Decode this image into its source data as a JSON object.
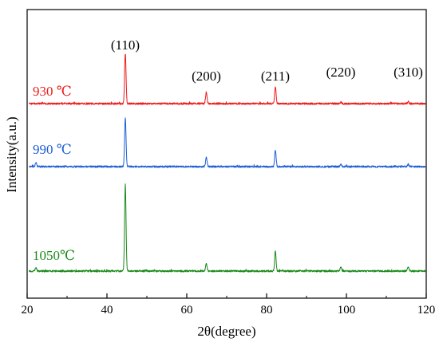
{
  "chart_data": {
    "type": "line",
    "xlabel": "2θ(degree)",
    "ylabel": "Intensity(a.u.)",
    "xlim": [
      20,
      120
    ],
    "xticks": [
      "20",
      "40",
      "60",
      "80",
      "100",
      "120"
    ],
    "y_tick_labels": "none",
    "grid": false,
    "legend": "none",
    "peak_labels": [
      {
        "text": "(110)",
        "x": 44.6
      },
      {
        "text": "(200)",
        "x": 64.9
      },
      {
        "text": "(211)",
        "x": 82.2
      },
      {
        "text": "(220)",
        "x": 98.6
      },
      {
        "text": "(310)",
        "x": 115.5
      }
    ],
    "series": [
      {
        "name": "930 ℃",
        "color": "#ee1c1c",
        "peaks": [
          {
            "x": 44.6,
            "rel_intensity": 1.0
          },
          {
            "x": 64.9,
            "rel_intensity": 0.23
          },
          {
            "x": 82.2,
            "rel_intensity": 0.34
          },
          {
            "x": 98.6,
            "rel_intensity": 0.03
          },
          {
            "x": 115.5,
            "rel_intensity": 0.04
          }
        ]
      },
      {
        "name": "990 ℃",
        "color": "#1e5fd6",
        "peaks": [
          {
            "x": 22.2,
            "rel_intensity": 0.08
          },
          {
            "x": 44.6,
            "rel_intensity": 1.0
          },
          {
            "x": 64.9,
            "rel_intensity": 0.18
          },
          {
            "x": 82.2,
            "rel_intensity": 0.34
          },
          {
            "x": 98.6,
            "rel_intensity": 0.05
          },
          {
            "x": 115.5,
            "rel_intensity": 0.05
          }
        ]
      },
      {
        "name": "1050℃",
        "color": "#1a8a1a",
        "peaks": [
          {
            "x": 22.2,
            "rel_intensity": 0.04
          },
          {
            "x": 44.6,
            "rel_intensity": 1.0
          },
          {
            "x": 64.9,
            "rel_intensity": 0.09
          },
          {
            "x": 82.2,
            "rel_intensity": 0.23
          },
          {
            "x": 98.6,
            "rel_intensity": 0.05
          },
          {
            "x": 115.5,
            "rel_intensity": 0.05
          }
        ]
      }
    ]
  }
}
